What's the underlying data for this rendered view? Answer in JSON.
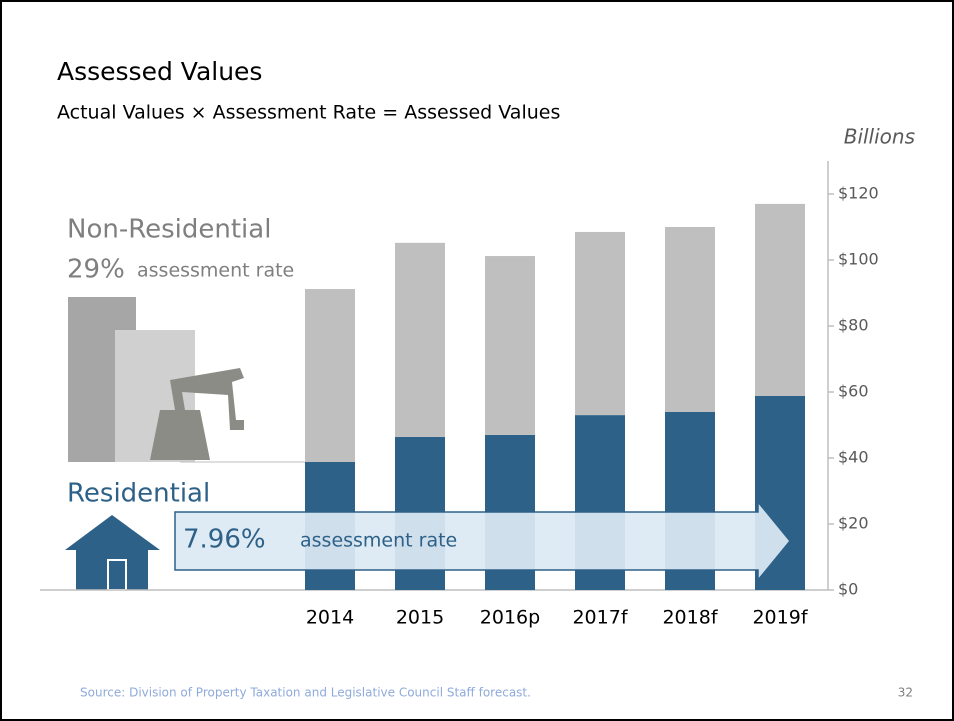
{
  "chart_data": {
    "type": "bar",
    "stacked": true,
    "title": "Assessed Values",
    "subtitle": "Actual Values × Assessment Rate = Assessed Values",
    "y_label": "Billions",
    "categories": [
      "2014",
      "2015",
      "2016p",
      "2017f",
      "2018f",
      "2019f"
    ],
    "series": [
      {
        "name": "Residential",
        "color": "#2e6188",
        "values": [
          38.8,
          46.4,
          47,
          53,
          54,
          58.8
        ]
      },
      {
        "name": "Non-Residential",
        "color": "#bfbfbf",
        "values": [
          52.4,
          58.8,
          54.2,
          55.5,
          56,
          58.2
        ]
      }
    ],
    "ylim": [
      0,
      130
    ],
    "yticks": [
      {
        "value": 0,
        "label": "$0"
      },
      {
        "value": 20,
        "label": "$20"
      },
      {
        "value": 40,
        "label": "$40"
      },
      {
        "value": 60,
        "label": "$60"
      },
      {
        "value": 80,
        "label": "$80"
      },
      {
        "value": 100,
        "label": "$100"
      },
      {
        "value": 120,
        "label": "$120"
      }
    ],
    "annotations": {
      "non_residential_rate": "29%",
      "residential_rate": "7.96%",
      "rate_text": "assessment rate"
    }
  },
  "footer": {
    "source": "Source: Division of Property Taxation and Legislative Council Staff forecast.",
    "page": "32"
  }
}
